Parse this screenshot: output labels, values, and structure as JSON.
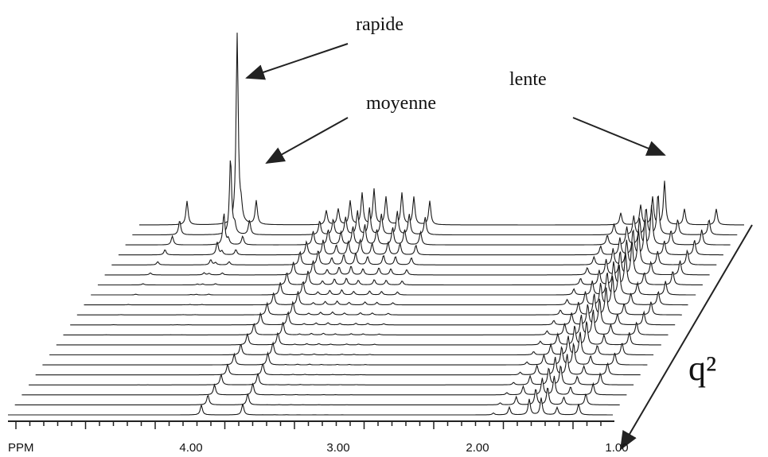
{
  "annotations": {
    "fast": "rapide",
    "medium": "moyenne",
    "slow": "lente"
  },
  "axis": {
    "unit": "PPM",
    "ticks": [
      "4.00",
      "3.00",
      "2.00",
      "1.00"
    ],
    "depth_label": "q²"
  }
}
